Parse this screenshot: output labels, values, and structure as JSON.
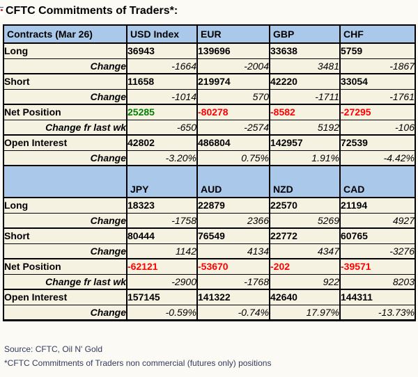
{
  "title": "CFTC Commitments of Traders*:",
  "colors": {
    "header_bg": "#aac9ea",
    "row_bg": "#f6f2e2",
    "border": "#000000",
    "positive": "#008000",
    "negative": "#ff0000",
    "footer_text": "#333a5e",
    "page_bg": "#fbfaf4"
  },
  "chart_data": {
    "type": "table",
    "title": "CFTC Commitments of Traders*:",
    "sections": [
      {
        "header": [
          "Contracts (Mar 26)",
          "USD Index",
          "EUR",
          "GBP",
          "CHF"
        ],
        "rows": [
          {
            "label": "Long",
            "type": "main",
            "values": [
              "36943",
              "139696",
              "33638",
              "5759"
            ]
          },
          {
            "label": "Change",
            "type": "change",
            "values": [
              "-1664",
              "-2004",
              "3481",
              "-1867"
            ]
          },
          {
            "label": "Short",
            "type": "main",
            "values": [
              "11658",
              "219974",
              "42220",
              "33054"
            ]
          },
          {
            "label": "Change",
            "type": "change",
            "values": [
              "-1014",
              "570",
              "-1711",
              "-1761"
            ]
          },
          {
            "label": "Net Position",
            "type": "net",
            "values": [
              "25285",
              "-80278",
              "-8582",
              "-27295"
            ],
            "value_colors": [
              "positive",
              "negative",
              "negative",
              "negative"
            ]
          },
          {
            "label": "Change fr last wk",
            "type": "change",
            "values": [
              "-650",
              "-2574",
              "5192",
              "-106"
            ]
          },
          {
            "label": "Open Interest",
            "type": "main",
            "values": [
              "42802",
              "486804",
              "142957",
              "72539"
            ]
          },
          {
            "label": "Change",
            "type": "change",
            "values": [
              "-3.20%",
              "0.75%",
              "1.91%",
              "-4.42%"
            ]
          }
        ]
      },
      {
        "header": [
          "",
          "JPY",
          "AUD",
          "NZD",
          "CAD"
        ],
        "rows": [
          {
            "label": "Long",
            "type": "main",
            "values": [
              "18323",
              "22879",
              "22570",
              "21194"
            ]
          },
          {
            "label": "Change",
            "type": "change",
            "values": [
              "-1758",
              "2366",
              "5269",
              "4927"
            ]
          },
          {
            "label": "Short",
            "type": "main",
            "values": [
              "80444",
              "76549",
              "22772",
              "60765"
            ]
          },
          {
            "label": "Change",
            "type": "change",
            "values": [
              "1142",
              "4134",
              "4347",
              "-3276"
            ]
          },
          {
            "label": "Net Position",
            "type": "net",
            "values": [
              "-62121",
              "-53670",
              "-202",
              "-39571"
            ],
            "value_colors": [
              "negative",
              "negative",
              "negative",
              "negative"
            ]
          },
          {
            "label": "Change fr last wk",
            "type": "change",
            "values": [
              "-2900",
              "-1768",
              "922",
              "8203"
            ]
          },
          {
            "label": "Open Interest",
            "type": "main",
            "values": [
              "157145",
              "141322",
              "42640",
              "144311"
            ]
          },
          {
            "label": "Change",
            "type": "change",
            "values": [
              "-0.59%",
              "-0.74%",
              "17.97%",
              "-13.73%"
            ]
          }
        ]
      }
    ]
  },
  "footer": {
    "source": "Source: CFTC, Oil N' Gold",
    "note": "*CFTC Commitments of Traders non commercial (futures only) positions"
  }
}
